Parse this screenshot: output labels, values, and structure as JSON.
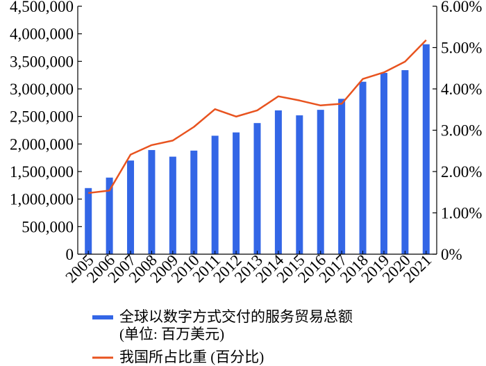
{
  "chart_data": {
    "type": "bar+line",
    "categories": [
      "2005",
      "2006",
      "2007",
      "2008",
      "2009",
      "2010",
      "2011",
      "2012",
      "2013",
      "2014",
      "2015",
      "2016",
      "2017",
      "2018",
      "2019",
      "2020",
      "2021"
    ],
    "series": [
      {
        "name": "全球以数字方式交付的服务贸易总额",
        "name_line2": "(单位: 百万美元)",
        "type": "bar",
        "axis": "left",
        "color": "#3366e6",
        "values": [
          1200000,
          1390000,
          1700000,
          1890000,
          1770000,
          1880000,
          2150000,
          2210000,
          2380000,
          2610000,
          2520000,
          2620000,
          2820000,
          3130000,
          3290000,
          3340000,
          3810000
        ]
      },
      {
        "name": "我国所占比重 (百分比)",
        "type": "line",
        "axis": "right",
        "color": "#e8531f",
        "values": [
          1.48,
          1.54,
          2.41,
          2.64,
          2.75,
          3.08,
          3.51,
          3.33,
          3.48,
          3.82,
          3.72,
          3.6,
          3.64,
          4.24,
          4.4,
          4.66,
          5.18
        ]
      }
    ],
    "y_left": {
      "ylim": [
        0,
        4500000
      ],
      "ticks": [
        "0",
        "500,000",
        "1,000,000",
        "1,500,000",
        "2,000,000",
        "2,500,000",
        "3,000,000",
        "3,500,000",
        "4,000,000",
        "4,500,000"
      ]
    },
    "y_right": {
      "ylim": [
        0,
        6
      ],
      "ticks": [
        "0%",
        "1.00%",
        "2.00%",
        "3.00%",
        "4.00%",
        "5.00%",
        "6.00%"
      ]
    },
    "legend_position": "bottom",
    "grid": false,
    "title": "",
    "xlabel": "",
    "ylabel": ""
  }
}
